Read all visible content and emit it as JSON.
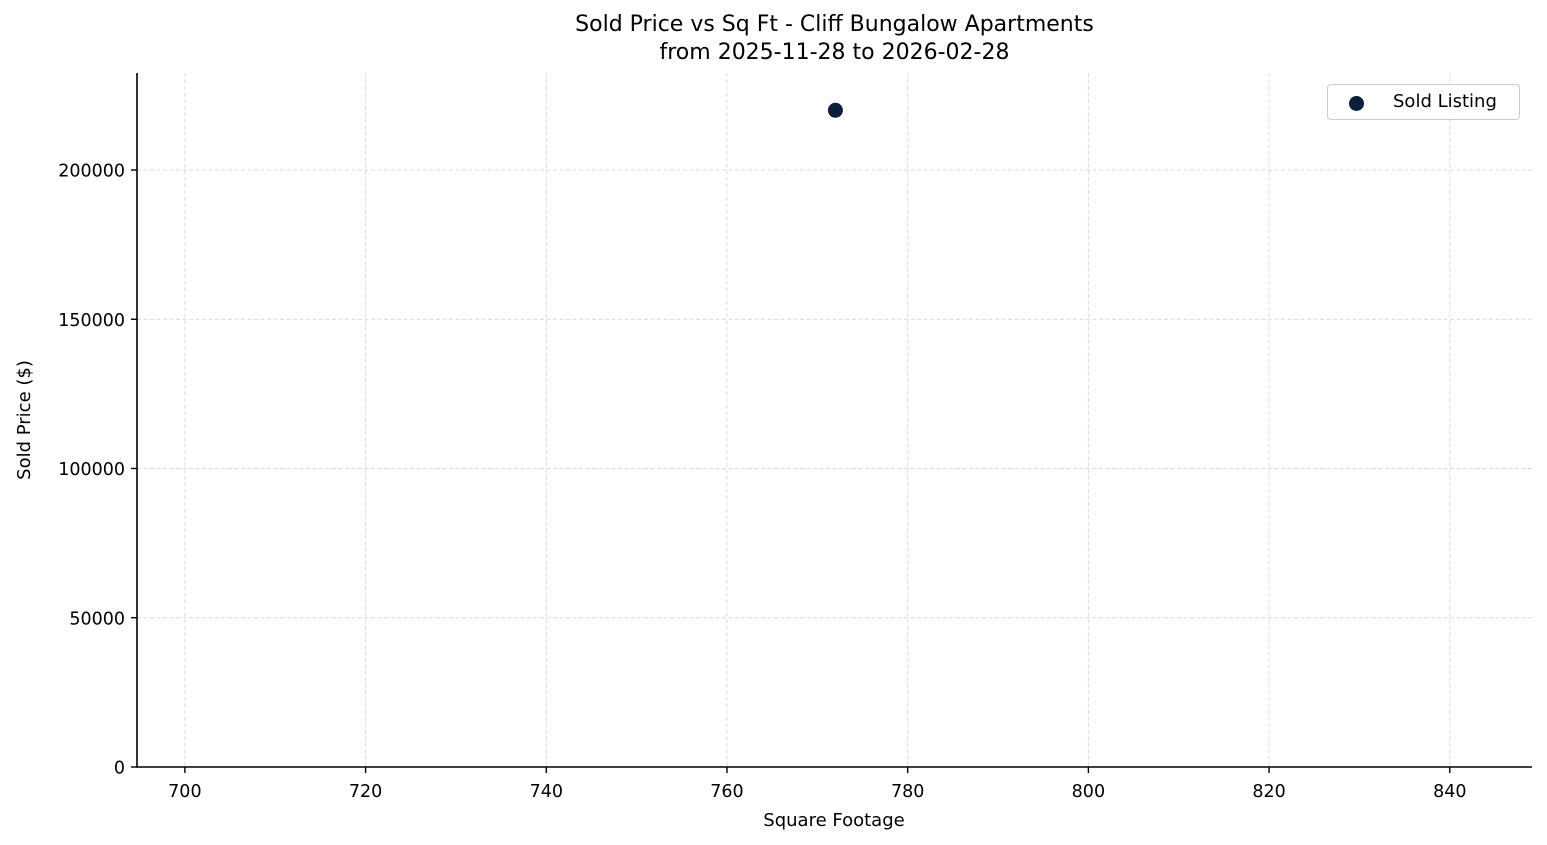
{
  "chart_data": {
    "type": "scatter",
    "title": "Sold Price vs Sq Ft - Cliff Bungalow Apartments",
    "subtitle": "from 2025-11-28 to 2026-02-28",
    "xlabel": "Square Footage",
    "ylabel": "Sold Price ($)",
    "xlim": [
      694.7,
      849.1
    ],
    "ylim": [
      0,
      232500
    ],
    "xticks": [
      700,
      720,
      740,
      760,
      780,
      800,
      820,
      840
    ],
    "yticks": [
      0,
      50000,
      100000,
      150000,
      200000
    ],
    "grid": true,
    "legend_position": "upper right",
    "series": [
      {
        "name": "Sold Listing",
        "color": "#0b1f3a",
        "points": [
          {
            "x": 772,
            "y": 220000
          }
        ]
      }
    ]
  },
  "title": {
    "line1": "Sold Price vs Sq Ft - Cliff Bungalow Apartments",
    "line2": "from 2025-11-28 to 2026-02-28"
  },
  "axes": {
    "xlabel": "Square Footage",
    "ylabel": "Sold Price ($)",
    "xtick_labels": [
      "700",
      "720",
      "740",
      "760",
      "780",
      "800",
      "820",
      "840"
    ],
    "ytick_labels": [
      "0",
      "50000",
      "100000",
      "150000",
      "200000"
    ]
  },
  "legend": {
    "label": "Sold Listing",
    "marker_color": "#0b1f3a"
  }
}
